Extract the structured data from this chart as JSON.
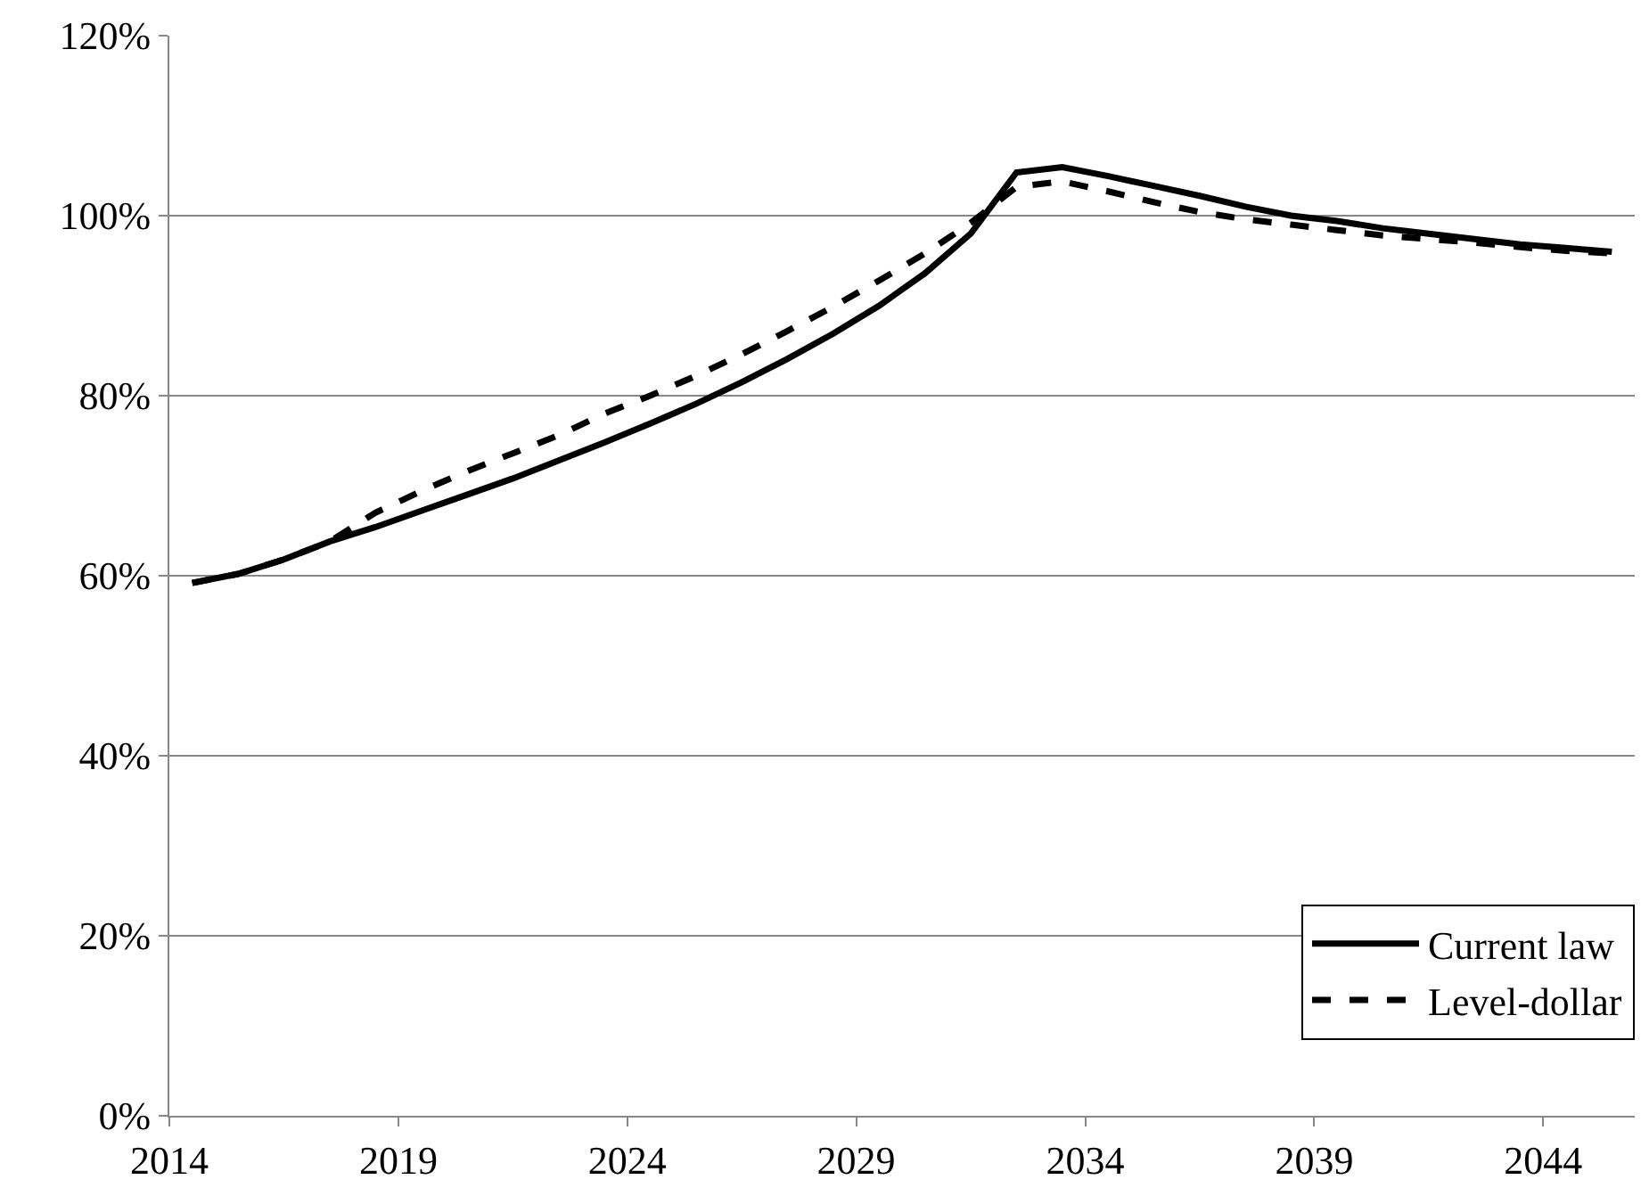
{
  "chart_data": {
    "type": "line",
    "x": [
      2014,
      2015,
      2016,
      2017,
      2018,
      2019,
      2020,
      2021,
      2022,
      2023,
      2024,
      2025,
      2026,
      2027,
      2028,
      2029,
      2030,
      2031,
      2032,
      2033,
      2034,
      2035,
      2036,
      2037,
      2038,
      2039,
      2040,
      2041,
      2042,
      2043,
      2044,
      2045
    ],
    "series": [
      {
        "name": "Current law",
        "color": "#000000",
        "line_style": "solid",
        "values": [
          59.2,
          60.2,
          61.8,
          63.8,
          65.4,
          67.2,
          69.0,
          70.8,
          72.8,
          74.8,
          76.9,
          79.1,
          81.5,
          84.1,
          86.9,
          90.0,
          93.6,
          98.0,
          104.8,
          105.4,
          104.4,
          103.3,
          102.2,
          101.0,
          100.0,
          99.4,
          98.6,
          98.0,
          97.4,
          96.8,
          96.4,
          96.0
        ]
      },
      {
        "name": "Level-dollar",
        "color": "#000000",
        "line_style": "dashed",
        "values": [
          59.2,
          60.2,
          61.8,
          63.8,
          67.0,
          69.4,
          71.6,
          73.6,
          75.6,
          78.0,
          80.0,
          82.2,
          84.6,
          87.2,
          89.9,
          92.8,
          95.8,
          99.2,
          103.2,
          103.8,
          102.7,
          101.5,
          100.4,
          99.6,
          99.0,
          98.4,
          97.8,
          97.4,
          97.0,
          96.5,
          96.1,
          95.8
        ]
      }
    ],
    "xlim": [
      2013.5,
      2045.5
    ],
    "xticks": [
      {
        "value": 2013.5,
        "label": "2014"
      },
      {
        "value": 2018.5,
        "label": "2019"
      },
      {
        "value": 2023.5,
        "label": "2024"
      },
      {
        "value": 2028.5,
        "label": "2029"
      },
      {
        "value": 2033.5,
        "label": "2034"
      },
      {
        "value": 2038.5,
        "label": "2039"
      },
      {
        "value": 2043.5,
        "label": "2044"
      }
    ],
    "ylim": [
      0,
      120
    ],
    "yticks": [
      {
        "value": 0,
        "label": "0%"
      },
      {
        "value": 20,
        "label": "20%"
      },
      {
        "value": 40,
        "label": "40%"
      },
      {
        "value": 60,
        "label": "60%"
      },
      {
        "value": 80,
        "label": "80%"
      },
      {
        "value": 100,
        "label": "100%"
      },
      {
        "value": 120,
        "label": "120%"
      }
    ],
    "grid": "y",
    "legend": "bottom right",
    "marker": "none"
  }
}
